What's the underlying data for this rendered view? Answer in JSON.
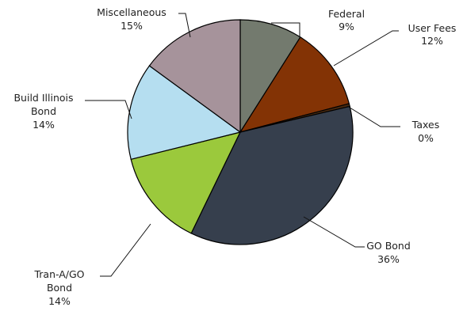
{
  "chart_data": {
    "type": "pie",
    "title": "",
    "start_angle_deg": 0,
    "direction": "clockwise",
    "slices": [
      {
        "label": "Federal",
        "percent_label": "9%",
        "value": 9,
        "color": "#737a6e"
      },
      {
        "label": "User Fees",
        "percent_label": "12%",
        "value": 12,
        "color": "#833305"
      },
      {
        "label": "Taxes",
        "percent_label": "0%",
        "value": 0.4,
        "color": "#4a2a10"
      },
      {
        "label": "GO Bond",
        "percent_label": "36%",
        "value": 36,
        "color": "#363f4d"
      },
      {
        "label": "Tran-A/GO Bond",
        "percent_label": "14%",
        "value": 14,
        "color": "#9bc93c"
      },
      {
        "label": "Build Illinois Bond",
        "percent_label": "14%",
        "value": 14,
        "color": "#b5def0"
      },
      {
        "label": "Miscellaneous",
        "percent_label": "15%",
        "value": 15,
        "color": "#a6939b"
      }
    ]
  }
}
